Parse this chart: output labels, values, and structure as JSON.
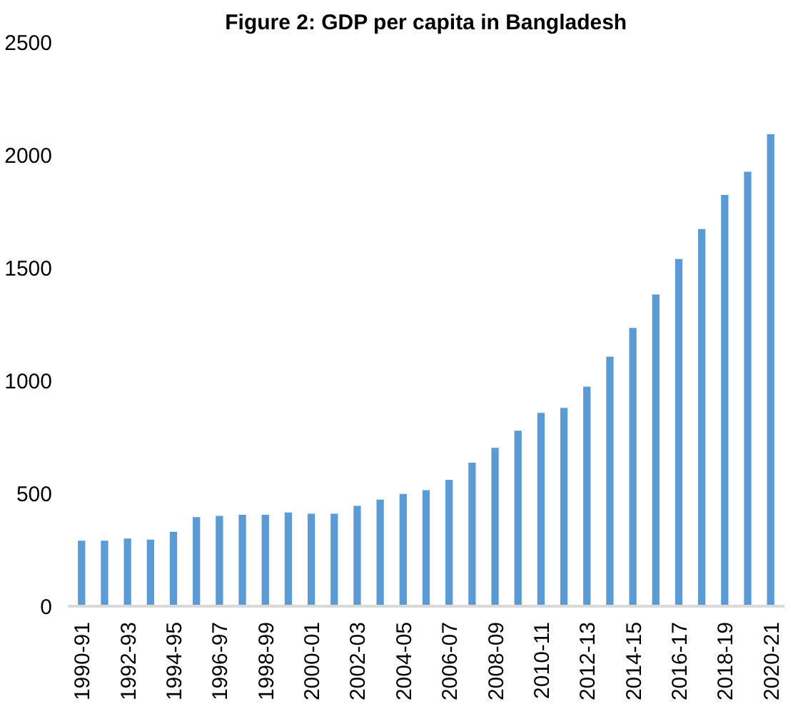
{
  "chart_data": {
    "type": "bar",
    "title": "Figure 2: GDP per capita in Bangladesh",
    "categories": [
      "1990-91",
      null,
      "1992-93",
      null,
      "1994-95",
      null,
      "1996-97",
      null,
      "1998-99",
      null,
      "2000-01",
      null,
      "2002-03",
      null,
      "2004-05",
      null,
      "2006-07",
      null,
      "2008-09",
      null,
      "2010-11",
      null,
      "2012-13",
      null,
      "2014-15",
      null,
      "2016-17",
      null,
      "2018-19",
      null,
      "2020-21"
    ],
    "values": [
      290,
      290,
      300,
      295,
      330,
      395,
      400,
      405,
      405,
      415,
      410,
      410,
      445,
      472,
      498,
      514,
      560,
      636,
      702,
      778,
      857,
      879,
      973,
      1106,
      1233,
      1381,
      1539,
      1672,
      1823,
      1926,
      2092
    ],
    "color": "#5b9bd5",
    "ylim": [
      0,
      2500
    ],
    "yticks": [
      0,
      500,
      1000,
      1500,
      2000,
      2500
    ],
    "grid": false
  }
}
